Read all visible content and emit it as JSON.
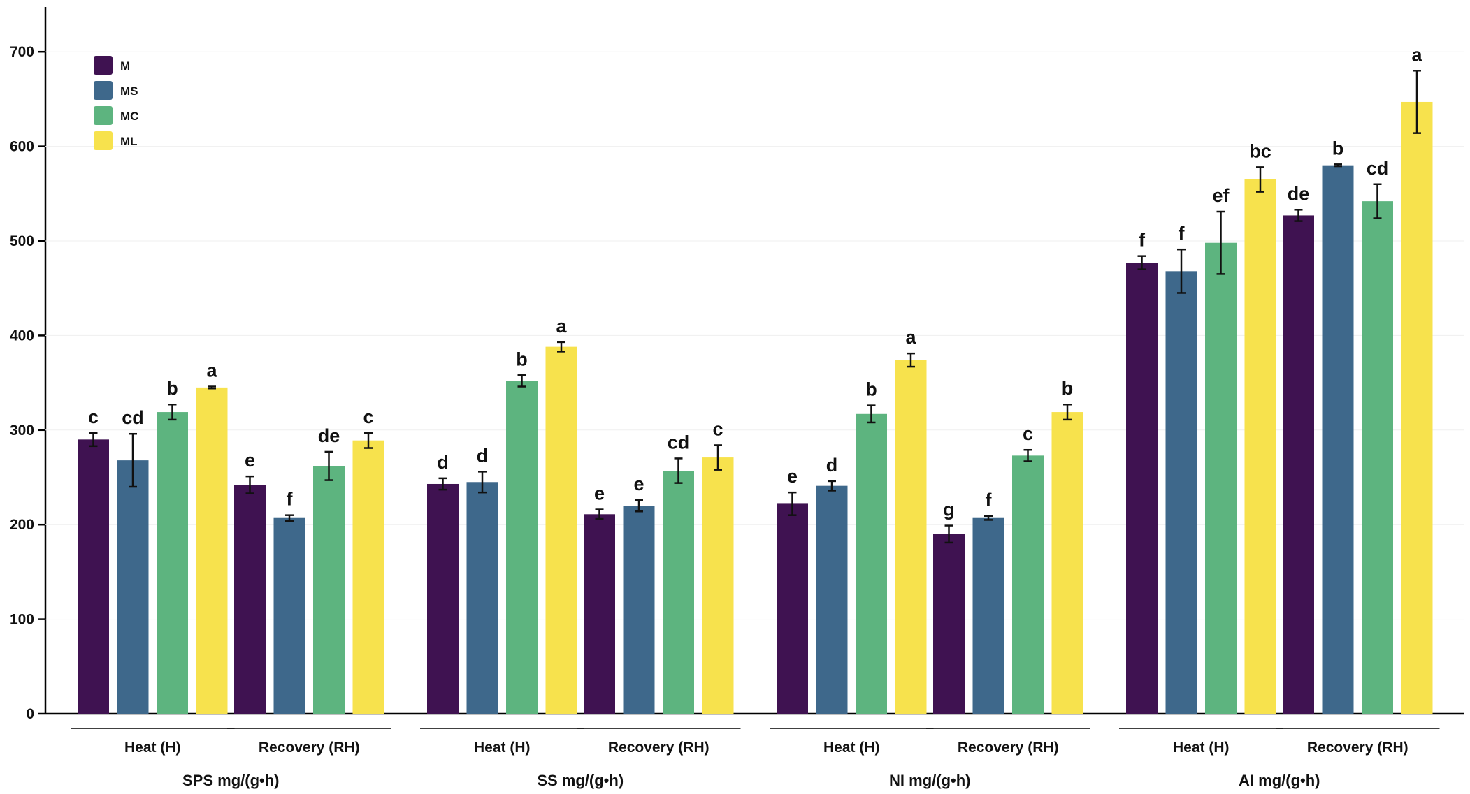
{
  "chart_data": {
    "type": "bar",
    "ylim": [
      0,
      750
    ],
    "yticks": [
      0,
      100,
      200,
      300,
      400,
      500,
      600,
      700
    ],
    "grid": false,
    "legend_position": "top-left",
    "series": [
      {
        "name": "M",
        "color": "#3f1251"
      },
      {
        "name": "MS",
        "color": "#3e688b"
      },
      {
        "name": "MC",
        "color": "#5db47f"
      },
      {
        "name": "ML",
        "color": "#f7e24d"
      }
    ],
    "groups": [
      {
        "name": "SPS mg/(g•h)",
        "phases": [
          {
            "label": "Heat (H)",
            "values": [
              290,
              268,
              319,
              345
            ],
            "errors": [
              7,
              28,
              8,
              1
            ],
            "letters": [
              "c",
              "cd",
              "b",
              "a"
            ]
          },
          {
            "label": "Recovery (RH)",
            "values": [
              242,
              207,
              262,
              289
            ],
            "errors": [
              9,
              3,
              15,
              8
            ],
            "letters": [
              "e",
              "f",
              "de",
              "c"
            ]
          }
        ]
      },
      {
        "name": "SS mg/(g•h)",
        "phases": [
          {
            "label": "Heat (H)",
            "values": [
              243,
              245,
              352,
              388
            ],
            "errors": [
              6,
              11,
              6,
              5
            ],
            "letters": [
              "d",
              "d",
              "b",
              "a"
            ]
          },
          {
            "label": "Recovery (RH)",
            "values": [
              211,
              220,
              257,
              271
            ],
            "errors": [
              5,
              6,
              13,
              13
            ],
            "letters": [
              "e",
              "e",
              "cd",
              "c"
            ]
          }
        ]
      },
      {
        "name": "NI mg/(g•h)",
        "phases": [
          {
            "label": "Heat (H)",
            "values": [
              222,
              241,
              317,
              374
            ],
            "errors": [
              12,
              5,
              9,
              7
            ],
            "letters": [
              "e",
              "d",
              "b",
              "a"
            ]
          },
          {
            "label": "Recovery (RH)",
            "values": [
              190,
              207,
              273,
              319
            ],
            "errors": [
              9,
              2,
              6,
              8
            ],
            "letters": [
              "g",
              "f",
              "c",
              "b"
            ]
          }
        ]
      },
      {
        "name": "AI mg/(g•h)",
        "phases": [
          {
            "label": "Heat (H)",
            "values": [
              477,
              468,
              498,
              565
            ],
            "errors": [
              7,
              23,
              33,
              13
            ],
            "letters": [
              "f",
              "f",
              "ef",
              "bc"
            ]
          },
          {
            "label": "Recovery (RH)",
            "values": [
              527,
              580,
              542,
              647
            ],
            "errors": [
              6,
              1,
              18,
              33
            ],
            "letters": [
              "de",
              "b",
              "cd",
              "a"
            ]
          }
        ]
      }
    ]
  }
}
